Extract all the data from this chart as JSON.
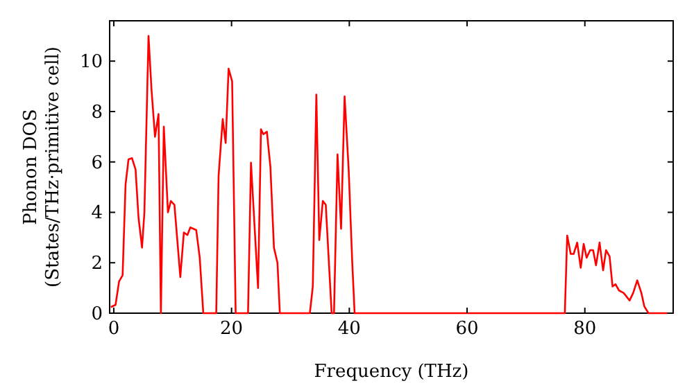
{
  "chart_data": {
    "type": "line",
    "xlabel": "Frequency (THz)",
    "ylabel": "Phonon DOS\n(States/THz·primitive cell)",
    "xlim": [
      -0.7,
      95
    ],
    "ylim": [
      0,
      11.6
    ],
    "xticks": [
      0,
      20,
      40,
      60,
      80
    ],
    "yticks": [
      0,
      2,
      4,
      6,
      8,
      10
    ],
    "grid": false,
    "marker": "none",
    "line_style": "solid",
    "series": [
      {
        "color": "#ff0000",
        "x": [
          -0.5,
          0.3,
          0.9,
          1.5,
          2.0,
          2.5,
          3.1,
          3.7,
          4.2,
          4.8,
          5.2,
          5.9,
          6.4,
          7.0,
          7.6,
          8.0,
          8.5,
          9.2,
          9.7,
          10.3,
          11.3,
          11.9,
          12.5,
          13.0,
          14.0,
          14.6,
          15.2,
          17.4,
          17.8,
          18.5,
          19.0,
          19.5,
          20.1,
          20.7,
          22.8,
          23.3,
          24.5,
          25.0,
          25.4,
          26.0,
          26.6,
          27.2,
          27.8,
          28.2,
          33.3,
          33.8,
          34.4,
          34.9,
          35.5,
          36.0,
          37.0,
          37.4,
          38.0,
          38.6,
          39.2,
          39.9,
          40.5,
          40.9,
          76.6,
          77.0,
          77.6,
          78.1,
          78.7,
          79.3,
          79.8,
          80.3,
          80.9,
          81.4,
          81.9,
          82.5,
          83.1,
          83.6,
          84.2,
          84.7,
          85.2,
          85.8,
          86.6,
          87.6,
          88.2,
          88.9,
          89.6,
          90.1,
          90.8,
          94
        ],
        "values": [
          0.24,
          0.33,
          1.26,
          1.5,
          5.1,
          6.1,
          6.15,
          5.7,
          3.8,
          2.6,
          4.0,
          11.0,
          8.9,
          7.0,
          7.9,
          0,
          7.4,
          4.0,
          4.45,
          4.3,
          1.43,
          3.2,
          3.1,
          3.4,
          3.3,
          2.2,
          0,
          0,
          5.45,
          7.7,
          6.75,
          9.7,
          9.2,
          0,
          0,
          5.97,
          1.0,
          7.3,
          7.1,
          7.2,
          5.8,
          2.6,
          2.0,
          0,
          0,
          1.06,
          8.67,
          2.9,
          4.45,
          4.3,
          0,
          0,
          6.3,
          3.35,
          8.6,
          5.65,
          2.0,
          0,
          0,
          3.08,
          2.35,
          2.35,
          2.8,
          1.8,
          2.75,
          2.2,
          2.5,
          2.5,
          1.9,
          2.8,
          1.7,
          2.5,
          2.25,
          1.06,
          1.15,
          0.9,
          0.8,
          0.5,
          0.8,
          1.3,
          0.8,
          0.27,
          0,
          0
        ]
      }
    ]
  }
}
